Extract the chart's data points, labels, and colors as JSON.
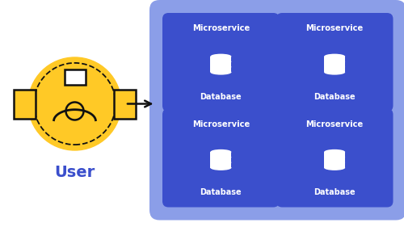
{
  "bg_color": "#ffffff",
  "yellow_color": "#FFC926",
  "light_blue_bg": "#8B9EE8",
  "blue_box_color": "#3B4FCC",
  "dark_color": "#111111",
  "user_text_color": "#3B4FCC",
  "white": "#ffffff",
  "user_label": "User",
  "microservice_label": "Microservice",
  "database_label": "Database",
  "figsize": [
    5.0,
    2.81
  ],
  "dpi": 100
}
